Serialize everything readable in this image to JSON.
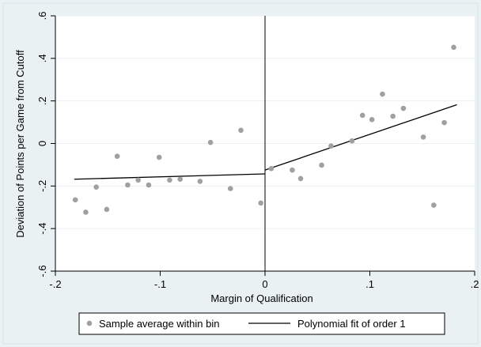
{
  "chart_data": {
    "type": "scatter",
    "xlabel": "Margin of Qualification",
    "ylabel": "Deviation of Points per Game from Cutoff",
    "xlim": [
      -0.2,
      0.2
    ],
    "ylim": [
      -0.6,
      0.6
    ],
    "x_ticks": [
      -0.2,
      -0.1,
      0,
      0.1,
      0.2
    ],
    "x_tick_labels": [
      "-.2",
      "-.1",
      "0",
      ".1",
      ".2"
    ],
    "y_ticks": [
      -0.6,
      -0.4,
      -0.2,
      0,
      0.2,
      0.4,
      0.6
    ],
    "y_tick_labels": [
      "-.6",
      "-.4",
      "-.2",
      "0",
      ".2",
      ".4",
      ".6"
    ],
    "cutoff_x": 0,
    "grid": true,
    "legend_position": "bottom",
    "colors": {
      "background": "#eaf1f3",
      "plot_area": "#ffffff",
      "grid": "#eaf1f3",
      "points": "#a0a0a0",
      "line": "#000000"
    },
    "series": [
      {
        "name": "Sample average within bin",
        "kind": "scatter",
        "points": [
          [
            -0.181,
            -0.265
          ],
          [
            -0.171,
            -0.323
          ],
          [
            -0.161,
            -0.205
          ],
          [
            -0.151,
            -0.31
          ],
          [
            -0.141,
            -0.06
          ],
          [
            -0.131,
            -0.195
          ],
          [
            -0.121,
            -0.172
          ],
          [
            -0.111,
            -0.195
          ],
          [
            -0.101,
            -0.065
          ],
          [
            -0.091,
            -0.172
          ],
          [
            -0.081,
            -0.168
          ],
          [
            -0.062,
            -0.178
          ],
          [
            -0.052,
            0.005
          ],
          [
            -0.033,
            -0.212
          ],
          [
            -0.023,
            0.062
          ],
          [
            -0.004,
            -0.28
          ],
          [
            0.006,
            -0.118
          ],
          [
            0.026,
            -0.125
          ],
          [
            0.034,
            -0.165
          ],
          [
            0.054,
            -0.102
          ],
          [
            0.063,
            -0.012
          ],
          [
            0.083,
            0.012
          ],
          [
            0.093,
            0.132
          ],
          [
            0.102,
            0.112
          ],
          [
            0.112,
            0.232
          ],
          [
            0.122,
            0.128
          ],
          [
            0.132,
            0.165
          ],
          [
            0.151,
            0.03
          ],
          [
            0.161,
            -0.29
          ],
          [
            0.171,
            0.098
          ],
          [
            0.18,
            0.452
          ]
        ]
      },
      {
        "name": "Polynomial fit of order 1",
        "kind": "line",
        "segments": [
          [
            [
              -0.182,
              -0.168
            ],
            [
              0,
              -0.143
            ]
          ],
          [
            [
              0,
              -0.125
            ],
            [
              0.183,
              0.182
            ]
          ]
        ]
      }
    ]
  }
}
